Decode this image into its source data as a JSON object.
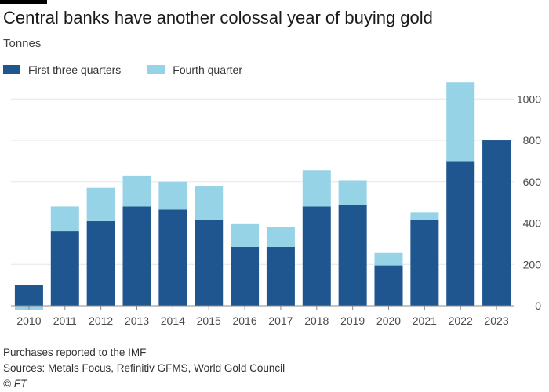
{
  "header": {
    "title": "Central banks have another colossal year of buying gold",
    "subtitle": "Tonnes"
  },
  "footer": {
    "note": "Purchases reported to the IMF",
    "sources": "Sources: Metals Focus, Refinitiv GFMS, World Gold Council",
    "credit": "© FT"
  },
  "colors": {
    "first_three_quarters": "#1f5690",
    "fourth_quarter": "#96d3e6",
    "grid": "#e6e6e6",
    "axis": "#8a8a8a"
  },
  "chart_data": {
    "type": "bar",
    "stacked": true,
    "categories": [
      "2010",
      "2011",
      "2012",
      "2013",
      "2014",
      "2015",
      "2016",
      "2017",
      "2018",
      "2019",
      "2020",
      "2021",
      "2022",
      "2023"
    ],
    "series": [
      {
        "name": "First three quarters",
        "values": [
          100,
          360,
          410,
          480,
          465,
          415,
          285,
          285,
          480,
          488,
          195,
          415,
          700,
          800
        ]
      },
      {
        "name": "Fourth quarter",
        "values": [
          -20,
          120,
          160,
          150,
          135,
          165,
          110,
          95,
          175,
          117,
          60,
          35,
          380,
          0
        ]
      }
    ],
    "title": "Central banks have another colossal year of buying gold",
    "ylabel": "Tonnes",
    "ylim": [
      -20,
      1080
    ],
    "yticks": [
      0,
      200,
      400,
      600,
      800,
      1000
    ],
    "ytick_labels": [
      "0",
      "200",
      "400",
      "600",
      "800",
      "1000"
    ],
    "y_axis_side": "right",
    "grid": true,
    "legend_position": "top-left"
  }
}
